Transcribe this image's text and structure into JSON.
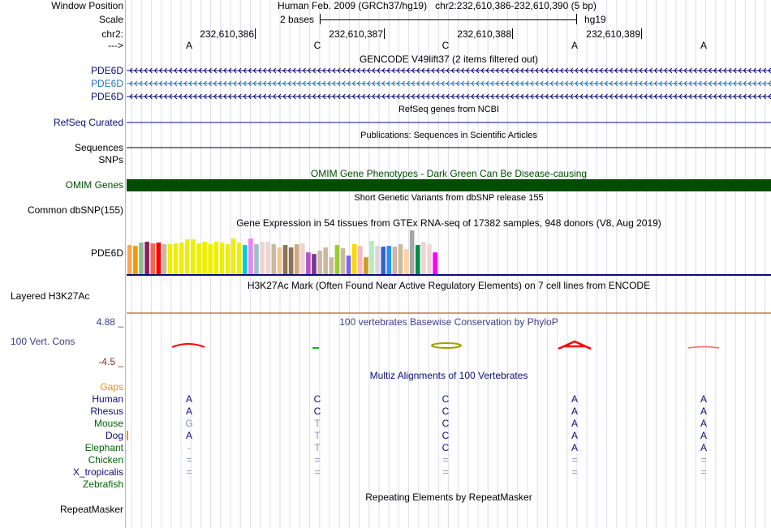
{
  "header": {
    "window_position_label": "Window Position",
    "window_position_value": "Human Feb. 2009 (GRCh37/hg19)   chr2:232,610,386-232,610,390 (5 bp)",
    "scale_label": "Scale",
    "scale_value": "2 bases",
    "scale_assembly": "hg19",
    "chrom_label": "chr2:",
    "positions": [
      "232,610,386",
      "232,610,387",
      "232,610,388",
      "232,610,389"
    ],
    "strand_label": "--->",
    "bases": [
      "A",
      "C",
      "C",
      "A",
      "A"
    ]
  },
  "tracks": {
    "gencode": {
      "title": "GENCODE V49lift37 (2 items filtered out)",
      "items": [
        "PDE6D",
        "PDE6D",
        "PDE6D"
      ],
      "colors": [
        "#0c0c78",
        "#1f77b4",
        "#0c0c78"
      ]
    },
    "refseq": {
      "title": "RefSeq genes from NCBI",
      "label": "RefSeq Curated"
    },
    "publications": {
      "title": "Publications: Sequences in Scientific Articles",
      "label": "Sequences"
    },
    "snps": {
      "label": "SNPs"
    },
    "omim": {
      "title": "OMIM Gene Phenotypes - Dark Green Can Be Disease-causing",
      "label": "OMIM Genes",
      "color": "#004d00"
    },
    "dbsnp": {
      "title": "Short Genetic Variants from dbSNP release 155",
      "label": "Common dbSNP(155)"
    },
    "gtex": {
      "title": "Gene Expression in 54 tissues from GTEx RNA-seq of 17382 samples, 948 donors (V8, Aug 2019)",
      "label": "PDE6D",
      "values": [
        107,
        104,
        116,
        119,
        113,
        116,
        110,
        110,
        113,
        116,
        128,
        128,
        113,
        119,
        110,
        119,
        116,
        110,
        131,
        116,
        107,
        131,
        110,
        119,
        119,
        110,
        98,
        107,
        98,
        110,
        113,
        80,
        74,
        86,
        98,
        62,
        107,
        95,
        68,
        110,
        104,
        62,
        122,
        104,
        101,
        104,
        101,
        110,
        92,
        161,
        107,
        119,
        110,
        80
      ],
      "colors": [
        "#FFA54F",
        "#EE9A00",
        "#8FBC8F",
        "#8B1C62",
        "#EE6A50",
        "#FF0000",
        "#CDB79E",
        "#EEEE00",
        "#EEEE00",
        "#EEEE00",
        "#EEEE00",
        "#EEEE00",
        "#EEEE00",
        "#EEEE00",
        "#EEEE00",
        "#EEEE00",
        "#EEEE00",
        "#EEEE00",
        "#EEEE00",
        "#EEEE00",
        "#00CDCD",
        "#EE82EE",
        "#9AC0CD",
        "#EED5D2",
        "#EED5D2",
        "#CDB79E",
        "#EEC591",
        "#8B7355",
        "#8B7355",
        "#CDAA7D",
        "#EED5D2",
        "#B452CD",
        "#7A378B",
        "#CDB79E",
        "#CDB79E",
        "#CDB79E",
        "#9ACD32",
        "#CDB79E",
        "#7A67EE",
        "#FFD700",
        "#FFB6C1",
        "#CD9B1D",
        "#B4EEB4",
        "#D9D9D9",
        "#3A5FCD",
        "#1E90FF",
        "#CDB79E",
        "#CDB79E",
        "#FFD39B",
        "#A6A6A6",
        "#008B45",
        "#EED5D2",
        "#EED5D2",
        "#FF00FF"
      ]
    },
    "h3k27ac": {
      "title": "H3K27Ac Mark (Often Found Near Active Regulatory Elements) on 7 cell lines from ENCODE",
      "label": "Layered H3K27Ac"
    },
    "phylop": {
      "title": "100 vertebrates Basewise Conservation by PhyloP",
      "label": "100 Vert. Cons",
      "max": "4.88 _",
      "min": "-4.5 _"
    },
    "multiz": {
      "title": "Multiz Alignments of 100 Vertebrates",
      "gaps_label": "Gaps",
      "species": [
        {
          "name": "Human",
          "color": "#0c0c78",
          "bases": [
            "A",
            "C",
            "C",
            "A",
            "A"
          ]
        },
        {
          "name": "Rhesus",
          "color": "#0c0c78",
          "bases": [
            "A",
            "C",
            "C",
            "A",
            "A"
          ]
        },
        {
          "name": "Mouse",
          "color": "#006400",
          "bases": [
            "G",
            "T",
            "C",
            "A",
            "A"
          ]
        },
        {
          "name": "Dog",
          "color": "#0c0c78",
          "bases": [
            "A",
            "T",
            "C",
            "A",
            "A"
          ]
        },
        {
          "name": "Elephant",
          "color": "#006400",
          "bases": [
            "-",
            "T",
            "C",
            "A",
            "A"
          ]
        },
        {
          "name": "Chicken",
          "color": "#006400",
          "bases": [
            "=",
            "=",
            "=",
            "=",
            "="
          ]
        },
        {
          "name": "X_tropicalis",
          "color": "#0c0c78",
          "bases": [
            "=",
            "=",
            "=",
            "=",
            "="
          ]
        },
        {
          "name": "Zebrafish",
          "color": "#006400",
          "bases": [
            "",
            "",
            "",
            "",
            ""
          ]
        }
      ]
    },
    "repeatmasker": {
      "title": "Repeating Elements by RepeatMasker",
      "label": "RepeatMasker"
    }
  }
}
